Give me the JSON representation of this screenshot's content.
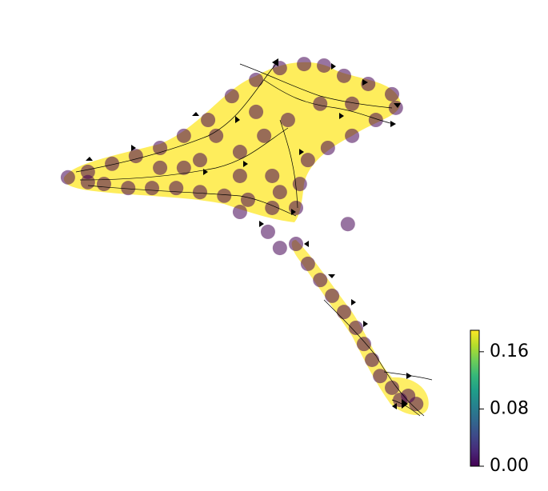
{
  "chart_data": {
    "type": "scatter",
    "colormap": "viridis",
    "x": [
      3.1,
      8.3,
      14.6,
      20.8,
      27.1,
      33.3,
      39.6,
      45.8,
      52.1,
      58.3,
      64.6,
      69.8,
      75.0,
      81.3,
      87.5,
      88.5,
      83.3,
      77.1,
      70.8,
      65.6,
      63.5,
      62.5,
      56.3,
      50.0,
      43.8,
      37.5,
      31.3,
      25.0,
      18.8,
      12.5,
      8.3,
      27.1,
      37.5,
      47.9,
      54.2,
      60.4,
      68.8,
      77.1,
      47.9,
      56.3,
      41.7,
      52.1,
      33.3,
      58.3,
      47.9,
      55.2,
      58.3,
      62.5,
      65.6,
      68.8,
      71.9,
      75.0,
      78.1,
      80.2,
      82.3,
      84.4,
      87.5,
      91.7,
      93.8,
      89.6,
      76.0
    ],
    "y": [
      67.0,
      68.5,
      70.7,
      72.8,
      75.0,
      78.3,
      82.6,
      89.1,
      93.5,
      96.7,
      97.8,
      97.4,
      94.6,
      92.4,
      89.6,
      85.9,
      82.6,
      78.3,
      75.0,
      71.7,
      65.2,
      58.7,
      58.7,
      60.9,
      62.0,
      63.0,
      64.1,
      64.1,
      64.1,
      65.2,
      65.7,
      69.6,
      71.7,
      73.9,
      78.3,
      82.6,
      87.0,
      87.0,
      67.4,
      67.4,
      78.3,
      84.8,
      69.6,
      63.0,
      57.6,
      52.2,
      47.8,
      48.9,
      43.5,
      39.1,
      34.8,
      30.4,
      26.1,
      21.7,
      17.4,
      13.0,
      9.8,
      7.6,
      5.4,
      6.5,
      54.3
    ],
    "values": [
      0,
      0,
      0,
      0,
      0,
      0,
      0,
      0,
      0,
      0,
      0,
      0,
      0,
      0,
      0,
      0,
      0,
      0,
      0,
      0,
      0,
      0,
      0,
      0,
      0,
      0,
      0,
      0,
      0,
      0,
      0,
      0,
      0,
      0,
      0,
      0,
      0,
      0,
      0,
      0,
      0,
      0,
      0,
      0,
      0,
      0,
      0,
      0,
      0,
      0,
      0,
      0,
      0,
      0,
      0,
      0,
      0,
      0,
      0,
      0,
      0
    ],
    "xlim": [
      0,
      100
    ],
    "ylim": [
      0,
      100
    ],
    "clim": [
      0,
      0.19
    ],
    "cticks": [
      {
        "value": 0,
        "label": "0.00"
      },
      {
        "value": 0.08,
        "label": "0.08"
      },
      {
        "value": 0.16,
        "label": "0.16"
      }
    ]
  }
}
